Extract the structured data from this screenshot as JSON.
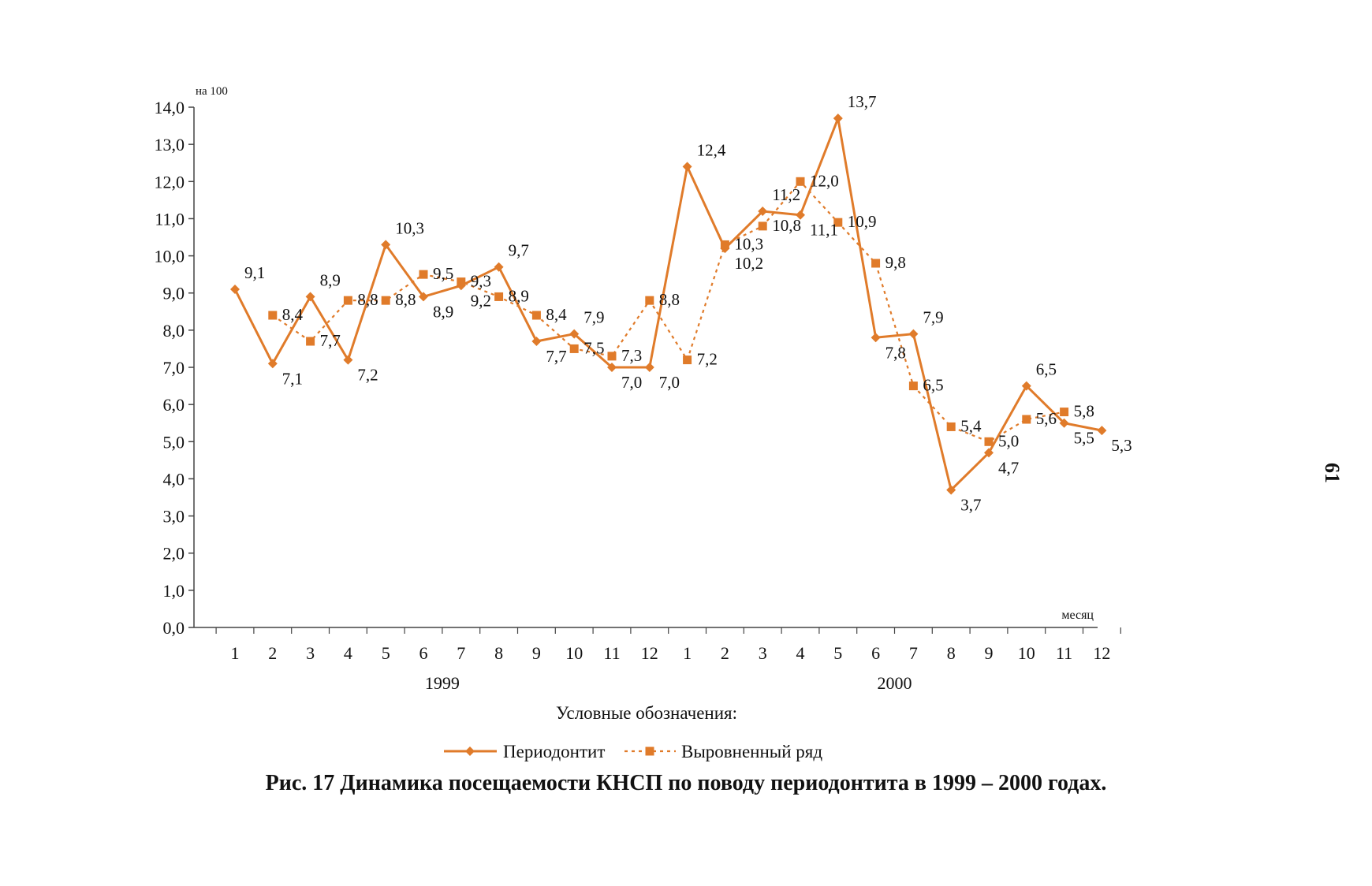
{
  "figure": {
    "caption": "Рис. 17  Динамика посещаемости КНСП по поводу периодонтита в 1999 – 2000 годах.",
    "page_number": "61"
  },
  "chart_data": {
    "type": "line",
    "y_unit_label": "на 100",
    "x_unit_label": "месяц",
    "ylim": [
      0,
      14
    ],
    "y_ticks": [
      "0,0",
      "1,0",
      "2,0",
      "3,0",
      "4,0",
      "5,0",
      "6,0",
      "7,0",
      "8,0",
      "9,0",
      "10,0",
      "11,0",
      "12,0",
      "13,0",
      "14,0"
    ],
    "categories": [
      "1",
      "2",
      "3",
      "4",
      "5",
      "6",
      "7",
      "8",
      "9",
      "10",
      "11",
      "12",
      "1",
      "2",
      "3",
      "4",
      "5",
      "6",
      "7",
      "8",
      "9",
      "10",
      "11",
      "12"
    ],
    "year_labels": [
      {
        "label": "1999",
        "center_index": 5.5
      },
      {
        "label": "2000",
        "center_index": 17.5
      }
    ],
    "legend_title": "Условные обозначения:",
    "grid": false,
    "colors": {
      "series": "#e07b2a"
    },
    "series": [
      {
        "name": "Периодонтит",
        "marker": "diamond",
        "line": "solid",
        "values": [
          9.1,
          7.1,
          8.9,
          7.2,
          10.3,
          8.9,
          9.2,
          9.7,
          7.7,
          7.9,
          7.0,
          7.0,
          12.4,
          10.2,
          11.2,
          11.1,
          13.7,
          7.8,
          7.9,
          3.7,
          4.7,
          6.5,
          5.5,
          5.3
        ],
        "labels": [
          "9,1",
          "7,1",
          "8,9",
          "7,2",
          "10,3",
          "8,9",
          "9,2",
          "9,7",
          "7,7",
          "7,9",
          "7,0",
          "7,0",
          "12,4",
          "10,2",
          "11,2",
          "11,1",
          "13,7",
          "7,8",
          "7,9",
          "3,7",
          "4,7",
          "6,5",
          "5,5",
          "5,3"
        ]
      },
      {
        "name": "Выровненный ряд",
        "marker": "square",
        "line": "dotted",
        "values": [
          null,
          8.4,
          7.7,
          8.8,
          8.8,
          9.5,
          9.3,
          8.9,
          8.4,
          7.5,
          7.3,
          8.8,
          7.2,
          10.3,
          10.8,
          12.0,
          10.9,
          9.8,
          6.5,
          5.4,
          5.0,
          5.6,
          5.8,
          null
        ],
        "labels": [
          null,
          "8,4",
          "7,7",
          "8,8",
          "8,8",
          "9,5",
          "9,3",
          "8,9",
          "8,4",
          "7,5",
          "7,3",
          "8,8",
          "7,2",
          "10,3",
          "10,8",
          "12,0",
          "10,9",
          "9,8",
          "6,5",
          "5,4",
          "5,0",
          "5,6",
          "5,8",
          null
        ]
      }
    ]
  }
}
